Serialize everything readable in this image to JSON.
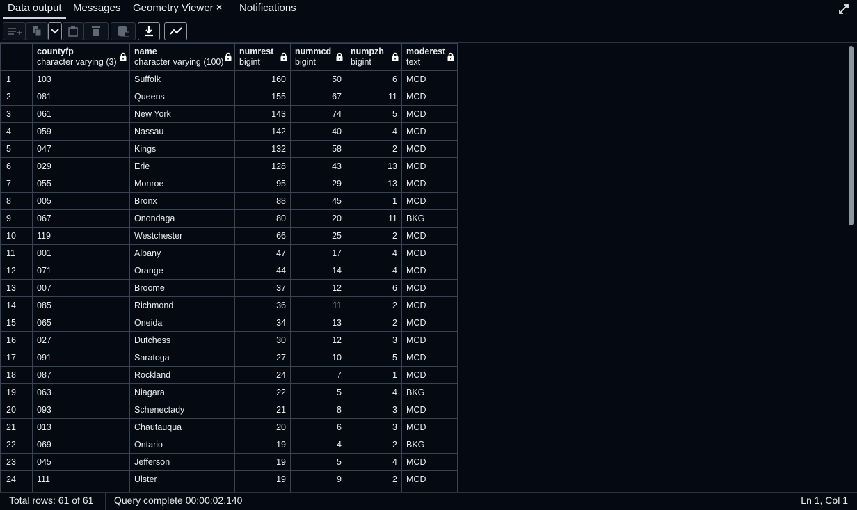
{
  "tabs": {
    "data_output": "Data output",
    "messages": "Messages",
    "geometry_viewer": "Geometry Viewer",
    "notifications": "Notifications",
    "close_symbol": "×"
  },
  "toolbar": {
    "icons": [
      "add-row-icon",
      "copy-icon",
      "chevron-down-icon",
      "paste-icon",
      "delete-icon",
      "save-data-icon",
      "download-icon",
      "graph-icon"
    ]
  },
  "columns": [
    {
      "name": "",
      "type": ""
    },
    {
      "name": "countyfp",
      "type": "character varying (3)"
    },
    {
      "name": "name",
      "type": "character varying (100)"
    },
    {
      "name": "numrest",
      "type": "bigint"
    },
    {
      "name": "nummcd",
      "type": "bigint"
    },
    {
      "name": "numpzh",
      "type": "bigint"
    },
    {
      "name": "moderest",
      "type": "text"
    }
  ],
  "rows": [
    [
      "1",
      "103",
      "Suffolk",
      "160",
      "50",
      "6",
      "MCD"
    ],
    [
      "2",
      "081",
      "Queens",
      "155",
      "67",
      "11",
      "MCD"
    ],
    [
      "3",
      "061",
      "New York",
      "143",
      "74",
      "5",
      "MCD"
    ],
    [
      "4",
      "059",
      "Nassau",
      "142",
      "40",
      "4",
      "MCD"
    ],
    [
      "5",
      "047",
      "Kings",
      "132",
      "58",
      "2",
      "MCD"
    ],
    [
      "6",
      "029",
      "Erie",
      "128",
      "43",
      "13",
      "MCD"
    ],
    [
      "7",
      "055",
      "Monroe",
      "95",
      "29",
      "13",
      "MCD"
    ],
    [
      "8",
      "005",
      "Bronx",
      "88",
      "45",
      "1",
      "MCD"
    ],
    [
      "9",
      "067",
      "Onondaga",
      "80",
      "20",
      "11",
      "BKG"
    ],
    [
      "10",
      "119",
      "Westchester",
      "66",
      "25",
      "2",
      "MCD"
    ],
    [
      "11",
      "001",
      "Albany",
      "47",
      "17",
      "4",
      "MCD"
    ],
    [
      "12",
      "071",
      "Orange",
      "44",
      "14",
      "4",
      "MCD"
    ],
    [
      "13",
      "007",
      "Broome",
      "37",
      "12",
      "6",
      "MCD"
    ],
    [
      "14",
      "085",
      "Richmond",
      "36",
      "11",
      "2",
      "MCD"
    ],
    [
      "15",
      "065",
      "Oneida",
      "34",
      "13",
      "2",
      "MCD"
    ],
    [
      "16",
      "027",
      "Dutchess",
      "30",
      "12",
      "3",
      "MCD"
    ],
    [
      "17",
      "091",
      "Saratoga",
      "27",
      "10",
      "5",
      "MCD"
    ],
    [
      "18",
      "087",
      "Rockland",
      "24",
      "7",
      "1",
      "MCD"
    ],
    [
      "19",
      "063",
      "Niagara",
      "22",
      "5",
      "4",
      "BKG"
    ],
    [
      "20",
      "093",
      "Schenectady",
      "21",
      "8",
      "3",
      "MCD"
    ],
    [
      "21",
      "013",
      "Chautauqua",
      "20",
      "6",
      "3",
      "MCD"
    ],
    [
      "22",
      "069",
      "Ontario",
      "19",
      "4",
      "2",
      "BKG"
    ],
    [
      "23",
      "045",
      "Jefferson",
      "19",
      "5",
      "4",
      "MCD"
    ],
    [
      "24",
      "111",
      "Ulster",
      "19",
      "9",
      "2",
      "MCD"
    ],
    [
      "",
      "",
      "",
      "",
      "",
      "",
      ""
    ]
  ],
  "status": {
    "total_rows": "Total rows: 61 of 61",
    "query": "Query complete 00:00:02.140",
    "position": "Ln 1, Col 1"
  }
}
